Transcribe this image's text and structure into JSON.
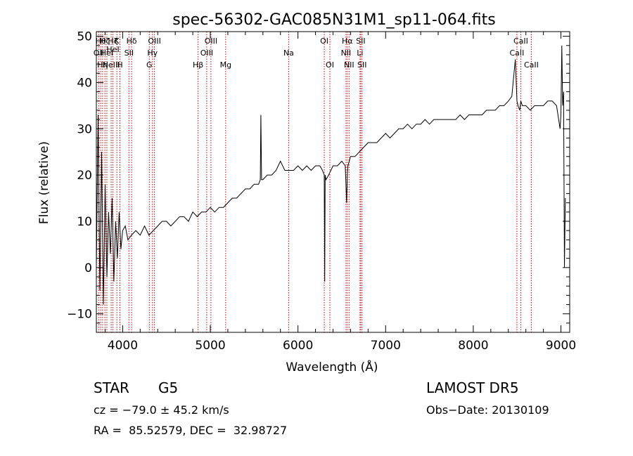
{
  "chart_data": {
    "type": "line",
    "title": "spec-56302-GAC085N31M1_sp11-064.fits",
    "xlabel": "Wavelength (Å)",
    "ylabel": "Flux (relative)",
    "xlim": [
      3700,
      9100
    ],
    "ylim": [
      -14,
      51
    ],
    "x_ticks": [
      4000,
      5000,
      6000,
      7000,
      8000,
      9000
    ],
    "x_tick_labels": [
      "4000",
      "5000",
      "6000",
      "7000",
      "8000",
      "9000"
    ],
    "x_minor_step": 200,
    "y_ticks": [
      -10,
      0,
      10,
      20,
      30,
      40,
      50
    ],
    "y_tick_labels": [
      "−10",
      "0",
      "10",
      "20",
      "30",
      "40",
      "50"
    ],
    "y_minor_step": 2,
    "grid": false,
    "line_color": "#000000",
    "marker_color": "#cc0000",
    "series": [
      {
        "x": [
          3700,
          3720,
          3740,
          3760,
          3780,
          3800,
          3820,
          3840,
          3860,
          3880,
          3900,
          3920,
          3940,
          3960,
          3980,
          4000,
          4030,
          4060,
          4100,
          4150,
          4200,
          4250,
          4300,
          4350,
          4400,
          4450,
          4500,
          4550,
          4600,
          4650,
          4700,
          4750,
          4800,
          4850,
          4900,
          4950,
          5000,
          5050,
          5100,
          5150,
          5200,
          5250,
          5300,
          5350,
          5400,
          5450,
          5500,
          5550,
          5570,
          5577,
          5585,
          5600,
          5650,
          5700,
          5750,
          5800,
          5850,
          5900,
          5950,
          6000,
          6050,
          6100,
          6150,
          6200,
          6250,
          6280,
          6300,
          6305,
          6310,
          6320,
          6350,
          6400,
          6450,
          6500,
          6540,
          6555,
          6563,
          6570,
          6600,
          6650,
          6700,
          6750,
          6800,
          6850,
          6900,
          6950,
          7000,
          7050,
          7100,
          7150,
          7200,
          7250,
          7300,
          7350,
          7400,
          7450,
          7500,
          7550,
          7600,
          7650,
          7700,
          7750,
          7800,
          7850,
          7900,
          7950,
          8000,
          8050,
          8100,
          8150,
          8200,
          8250,
          8300,
          8350,
          8400,
          8440,
          8480,
          8498,
          8510,
          8530,
          8542,
          8560,
          8600,
          8650,
          8700,
          8750,
          8800,
          8850,
          8900,
          8950,
          8990,
          9000,
          9010,
          9020,
          9030,
          9040,
          9050
        ],
        "y": [
          0,
          33,
          -5,
          25,
          -8,
          18,
          -2,
          12,
          3,
          15,
          -3,
          10,
          2,
          12,
          4,
          8,
          9,
          6,
          7,
          8,
          7,
          9,
          7,
          8,
          9,
          10,
          10,
          9,
          10,
          11,
          11,
          10,
          12,
          11,
          12,
          12,
          13,
          12,
          13,
          13,
          14,
          15,
          15,
          16,
          17,
          17,
          18,
          18,
          19,
          33,
          19,
          19,
          20,
          20,
          21,
          23,
          21,
          21,
          21,
          22,
          21,
          22,
          21,
          22,
          22,
          21,
          20,
          -3,
          20,
          19,
          20,
          22,
          22,
          23,
          22,
          14,
          20,
          22,
          24,
          24,
          25,
          26,
          27,
          27,
          27,
          28,
          29,
          28,
          29,
          30,
          30,
          31,
          30,
          31,
          31,
          32,
          31,
          32,
          32,
          32,
          32,
          32,
          32,
          33,
          32,
          33,
          33,
          33,
          33,
          34,
          34,
          34,
          35,
          35,
          36,
          37,
          45,
          36,
          35,
          34,
          36,
          35,
          35,
          34,
          35,
          35,
          35,
          36,
          36,
          35,
          30,
          33,
          48,
          35,
          38,
          0,
          15
        ]
      }
    ],
    "line_markers": [
      {
        "wl": 3727,
        "labels": [
          "OII"
        ],
        "tier": 1
      },
      {
        "wl": 3750,
        "labels": [
          "Hθ"
        ],
        "tier": 0
      },
      {
        "wl": 3771,
        "labels": [
          "Hη"
        ],
        "tier": 2
      },
      {
        "wl": 3798,
        "labels": [
          "Hζ"
        ],
        "tier": 0
      },
      {
        "wl": 3820,
        "labels": [
          "HeI"
        ],
        "tier": 1
      },
      {
        "wl": 3869,
        "labels": [
          "NeIII"
        ],
        "tier": 2
      },
      {
        "wl": 3889,
        "labels": [
          "Hζ",
          "HeI"
        ],
        "tier": 0
      },
      {
        "wl": 3934,
        "labels": [
          "K"
        ],
        "tier": 0
      },
      {
        "wl": 3969,
        "labels": [
          "H"
        ],
        "tier": 2
      },
      {
        "wl": 4072,
        "labels": [
          "SII"
        ],
        "tier": 1
      },
      {
        "wl": 4102,
        "labels": [
          "Hδ"
        ],
        "tier": 0
      },
      {
        "wl": 4304,
        "labels": [
          "G"
        ],
        "tier": 2
      },
      {
        "wl": 4340,
        "labels": [
          "Hγ"
        ],
        "tier": 1
      },
      {
        "wl": 4363,
        "labels": [
          "OIII"
        ],
        "tier": 0
      },
      {
        "wl": 4861,
        "labels": [
          "Hβ"
        ],
        "tier": 2
      },
      {
        "wl": 4959,
        "labels": [
          "OIII"
        ],
        "tier": 1
      },
      {
        "wl": 5007,
        "labels": [
          "OIII"
        ],
        "tier": 0
      },
      {
        "wl": 5175,
        "labels": [
          "Mg"
        ],
        "tier": 2
      },
      {
        "wl": 5894,
        "labels": [
          "Na"
        ],
        "tier": 1
      },
      {
        "wl": 6300,
        "labels": [
          "OI"
        ],
        "tier": 0
      },
      {
        "wl": 6364,
        "labels": [
          "OI"
        ],
        "tier": 2
      },
      {
        "wl": 6548,
        "labels": [
          "NII"
        ],
        "tier": 1
      },
      {
        "wl": 6563,
        "labels": [
          "Hα"
        ],
        "tier": 0
      },
      {
        "wl": 6583,
        "labels": [
          "NII"
        ],
        "tier": 2
      },
      {
        "wl": 6708,
        "labels": [
          "Li"
        ],
        "tier": 1
      },
      {
        "wl": 6716,
        "labels": [
          "SII"
        ],
        "tier": 0
      },
      {
        "wl": 6731,
        "labels": [
          "SII"
        ],
        "tier": 2
      },
      {
        "wl": 8498,
        "labels": [
          "CaII"
        ],
        "tier": 1
      },
      {
        "wl": 8542,
        "labels": [
          "CaII"
        ],
        "tier": 0
      },
      {
        "wl": 8662,
        "labels": [
          "CaII"
        ],
        "tier": 2
      }
    ]
  },
  "info": {
    "object_class": "STAR",
    "subclass": "G5",
    "survey": "LAMOST DR5",
    "redshift_line": "cz = −79.0 ± 45.2 km/s",
    "obs_date_line": "Obs−Date: 20130109",
    "coords_line": "RA =  85.52579, DEC =  32.98727"
  }
}
